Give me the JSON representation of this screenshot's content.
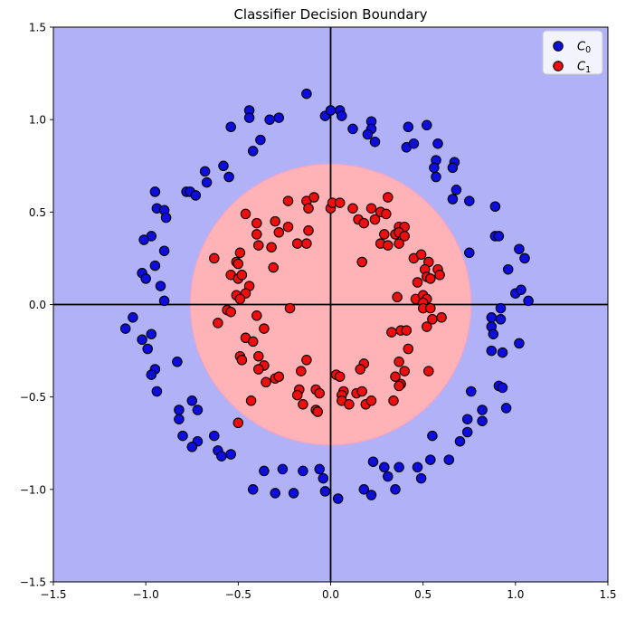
{
  "figure": {
    "title": "Classifier Decision Boundary",
    "background_color": "#ffffff"
  },
  "chart_data": {
    "type": "scatter",
    "title": "Classifier Decision Boundary",
    "xlabel": "",
    "ylabel": "",
    "xlim": [
      -1.5,
      1.5
    ],
    "ylim": [
      -1.5,
      1.5
    ],
    "grid": false,
    "xticks": {
      "values": [
        -1.5,
        -1.0,
        -0.5,
        0.0,
        0.5,
        1.0,
        1.5
      ],
      "labels": [
        "−1.5",
        "−1.0",
        "−0.5",
        "0.0",
        "0.5",
        "1.0",
        "1.5"
      ]
    },
    "yticks": {
      "values": [
        -1.5,
        -1.0,
        -0.5,
        0.0,
        0.5,
        1.0,
        1.5
      ],
      "labels": [
        "−1.5",
        "−1.0",
        "−0.5",
        "0.0",
        "0.5",
        "1.0",
        "1.5"
      ]
    },
    "axis_lines": {
      "x": 0,
      "y": 0,
      "color": "#000000",
      "width": 1.8
    },
    "decision_regions": {
      "outer_class": "C0",
      "outer_color": "#b1b1f8",
      "inner_class": "C1",
      "inner_color": "#ffb3b6",
      "boundary_shape": "circle",
      "boundary_center": [
        0,
        0
      ],
      "boundary_radius": 0.76,
      "boundary_edge_color": "#f0a4c8"
    },
    "legend": {
      "position": "upper right",
      "entries": [
        {
          "label_base": "C",
          "label_sub": "0",
          "marker_color": "#0d0ddd"
        },
        {
          "label_base": "C",
          "label_sub": "1",
          "marker_color": "#ee0e0e"
        }
      ]
    },
    "series": [
      {
        "name": "C0",
        "marker": "circle",
        "marker_color": "#0d0ddd",
        "edge_color": "#000000",
        "points": [
          [
            -0.13,
            1.14
          ],
          [
            -0.44,
            1.05
          ],
          [
            -0.44,
            1.01
          ],
          [
            -0.33,
            1.0
          ],
          [
            -0.28,
            1.01
          ],
          [
            -0.54,
            0.96
          ],
          [
            -0.03,
            1.02
          ],
          [
            0.0,
            1.05
          ],
          [
            0.05,
            1.05
          ],
          [
            0.06,
            1.02
          ],
          [
            -0.38,
            0.89
          ],
          [
            -0.42,
            0.83
          ],
          [
            -0.58,
            0.75
          ],
          [
            -0.68,
            0.72
          ],
          [
            -0.55,
            0.69
          ],
          [
            -0.67,
            0.66
          ],
          [
            -0.95,
            0.61
          ],
          [
            -0.78,
            0.61
          ],
          [
            -0.76,
            0.61
          ],
          [
            -0.73,
            0.59
          ],
          [
            -0.94,
            0.52
          ],
          [
            -0.9,
            0.51
          ],
          [
            -0.89,
            0.47
          ],
          [
            -0.97,
            0.37
          ],
          [
            -1.01,
            0.35
          ],
          [
            -0.9,
            0.29
          ],
          [
            -0.95,
            0.21
          ],
          [
            -1.02,
            0.17
          ],
          [
            -1.0,
            0.14
          ],
          [
            -0.92,
            0.1
          ],
          [
            -0.9,
            0.02
          ],
          [
            0.12,
            0.95
          ],
          [
            0.22,
            0.99
          ],
          [
            0.22,
            0.95
          ],
          [
            0.2,
            0.92
          ],
          [
            0.24,
            0.88
          ],
          [
            0.42,
            0.96
          ],
          [
            0.52,
            0.97
          ],
          [
            0.41,
            0.85
          ],
          [
            0.45,
            0.87
          ],
          [
            0.58,
            0.87
          ],
          [
            0.57,
            0.78
          ],
          [
            0.56,
            0.74
          ],
          [
            0.67,
            0.77
          ],
          [
            0.66,
            0.74
          ],
          [
            0.57,
            0.69
          ],
          [
            0.68,
            0.62
          ],
          [
            0.66,
            0.57
          ],
          [
            0.75,
            0.56
          ],
          [
            0.89,
            0.53
          ],
          [
            0.89,
            0.37
          ],
          [
            0.91,
            0.37
          ],
          [
            1.02,
            0.3
          ],
          [
            1.05,
            0.25
          ],
          [
            0.75,
            0.28
          ],
          [
            0.96,
            0.19
          ],
          [
            1.0,
            0.06
          ],
          [
            1.03,
            0.08
          ],
          [
            1.07,
            0.02
          ],
          [
            -1.07,
            -0.07
          ],
          [
            -1.11,
            -0.13
          ],
          [
            -1.02,
            -0.19
          ],
          [
            -0.97,
            -0.16
          ],
          [
            -0.99,
            -0.24
          ],
          [
            -0.83,
            -0.31
          ],
          [
            -0.95,
            -0.35
          ],
          [
            -0.97,
            -0.38
          ],
          [
            -0.94,
            -0.47
          ],
          [
            -0.75,
            -0.52
          ],
          [
            -0.72,
            -0.57
          ],
          [
            -0.82,
            -0.57
          ],
          [
            -0.82,
            -0.62
          ],
          [
            -0.8,
            -0.71
          ],
          [
            -0.72,
            -0.74
          ],
          [
            -0.75,
            -0.77
          ],
          [
            -0.63,
            -0.71
          ],
          [
            -0.61,
            -0.79
          ],
          [
            -0.59,
            -0.82
          ],
          [
            -0.54,
            -0.81
          ],
          [
            -0.36,
            -0.9
          ],
          [
            -0.26,
            -0.89
          ],
          [
            -0.15,
            -0.9
          ],
          [
            -0.06,
            -0.89
          ],
          [
            -0.42,
            -1.0
          ],
          [
            -0.3,
            -1.02
          ],
          [
            -0.2,
            -1.02
          ],
          [
            -0.04,
            -0.94
          ],
          [
            -0.03,
            -1.01
          ],
          [
            0.92,
            -0.02
          ],
          [
            0.87,
            -0.07
          ],
          [
            0.92,
            -0.08
          ],
          [
            0.87,
            -0.12
          ],
          [
            0.88,
            -0.16
          ],
          [
            1.02,
            -0.21
          ],
          [
            0.87,
            -0.25
          ],
          [
            0.93,
            -0.26
          ],
          [
            0.76,
            -0.47
          ],
          [
            0.91,
            -0.44
          ],
          [
            0.93,
            -0.45
          ],
          [
            0.82,
            -0.57
          ],
          [
            0.95,
            -0.56
          ],
          [
            0.74,
            -0.62
          ],
          [
            0.82,
            -0.63
          ],
          [
            0.74,
            -0.69
          ],
          [
            0.7,
            -0.74
          ],
          [
            0.55,
            -0.71
          ],
          [
            0.54,
            -0.84
          ],
          [
            0.64,
            -0.84
          ],
          [
            0.23,
            -0.85
          ],
          [
            0.29,
            -0.88
          ],
          [
            0.37,
            -0.88
          ],
          [
            0.47,
            -0.88
          ],
          [
            0.49,
            -0.94
          ],
          [
            0.31,
            -0.93
          ],
          [
            0.18,
            -1.0
          ],
          [
            0.22,
            -1.03
          ],
          [
            0.35,
            -1.0
          ],
          [
            0.04,
            -1.05
          ]
        ]
      },
      {
        "name": "C1",
        "marker": "circle",
        "marker_color": "#ee0e0e",
        "edge_color": "#000000",
        "points": [
          [
            -0.23,
            0.56
          ],
          [
            -0.13,
            0.56
          ],
          [
            -0.09,
            0.58
          ],
          [
            -0.12,
            0.52
          ],
          [
            0.0,
            0.52
          ],
          [
            0.01,
            0.55
          ],
          [
            0.05,
            0.55
          ],
          [
            -0.46,
            0.49
          ],
          [
            -0.4,
            0.44
          ],
          [
            -0.3,
            0.45
          ],
          [
            -0.23,
            0.42
          ],
          [
            -0.28,
            0.39
          ],
          [
            -0.4,
            0.38
          ],
          [
            -0.12,
            0.4
          ],
          [
            -0.39,
            0.32
          ],
          [
            -0.32,
            0.31
          ],
          [
            -0.18,
            0.33
          ],
          [
            -0.13,
            0.33
          ],
          [
            -0.63,
            0.25
          ],
          [
            -0.49,
            0.28
          ],
          [
            -0.51,
            0.23
          ],
          [
            -0.5,
            0.22
          ],
          [
            -0.31,
            0.2
          ],
          [
            -0.54,
            0.16
          ],
          [
            -0.5,
            0.14
          ],
          [
            -0.48,
            0.16
          ],
          [
            -0.44,
            0.1
          ],
          [
            -0.51,
            0.05
          ],
          [
            -0.46,
            0.06
          ],
          [
            -0.49,
            0.03
          ],
          [
            -0.22,
            -0.02
          ],
          [
            0.12,
            0.52
          ],
          [
            0.22,
            0.52
          ],
          [
            0.31,
            0.58
          ],
          [
            0.27,
            0.5
          ],
          [
            0.3,
            0.49
          ],
          [
            0.15,
            0.46
          ],
          [
            0.18,
            0.44
          ],
          [
            0.24,
            0.46
          ],
          [
            0.37,
            0.42
          ],
          [
            0.4,
            0.42
          ],
          [
            0.35,
            0.38
          ],
          [
            0.37,
            0.39
          ],
          [
            0.29,
            0.38
          ],
          [
            0.4,
            0.37
          ],
          [
            0.27,
            0.33
          ],
          [
            0.31,
            0.32
          ],
          [
            0.37,
            0.33
          ],
          [
            0.17,
            0.23
          ],
          [
            0.45,
            0.25
          ],
          [
            0.49,
            0.27
          ],
          [
            0.53,
            0.23
          ],
          [
            0.51,
            0.19
          ],
          [
            0.58,
            0.19
          ],
          [
            0.59,
            0.16
          ],
          [
            0.47,
            0.12
          ],
          [
            0.52,
            0.15
          ],
          [
            0.54,
            0.14
          ],
          [
            0.36,
            0.04
          ],
          [
            0.46,
            0.03
          ],
          [
            0.5,
            0.05
          ],
          [
            0.52,
            0.03
          ],
          [
            0.5,
            0.01
          ],
          [
            -0.56,
            -0.03
          ],
          [
            -0.54,
            -0.04
          ],
          [
            -0.61,
            -0.1
          ],
          [
            -0.4,
            -0.06
          ],
          [
            -0.36,
            -0.13
          ],
          [
            -0.46,
            -0.18
          ],
          [
            -0.42,
            -0.2
          ],
          [
            -0.49,
            -0.28
          ],
          [
            -0.48,
            -0.3
          ],
          [
            -0.39,
            -0.28
          ],
          [
            -0.36,
            -0.33
          ],
          [
            -0.39,
            -0.35
          ],
          [
            -0.35,
            -0.42
          ],
          [
            -0.3,
            -0.4
          ],
          [
            -0.28,
            -0.39
          ],
          [
            -0.13,
            -0.3
          ],
          [
            -0.16,
            -0.36
          ],
          [
            -0.17,
            -0.46
          ],
          [
            -0.18,
            -0.49
          ],
          [
            -0.15,
            -0.54
          ],
          [
            -0.08,
            -0.46
          ],
          [
            -0.06,
            -0.48
          ],
          [
            -0.08,
            -0.57
          ],
          [
            -0.07,
            -0.58
          ],
          [
            -0.43,
            -0.52
          ],
          [
            -0.5,
            -0.64
          ],
          [
            0.5,
            -0.02
          ],
          [
            0.54,
            -0.02
          ],
          [
            0.55,
            -0.08
          ],
          [
            0.6,
            -0.07
          ],
          [
            0.52,
            -0.12
          ],
          [
            0.33,
            -0.15
          ],
          [
            0.38,
            -0.14
          ],
          [
            0.41,
            -0.14
          ],
          [
            0.42,
            -0.24
          ],
          [
            0.18,
            -0.32
          ],
          [
            0.16,
            -0.35
          ],
          [
            0.37,
            -0.31
          ],
          [
            0.35,
            -0.39
          ],
          [
            0.4,
            -0.36
          ],
          [
            0.53,
            -0.36
          ],
          [
            0.38,
            -0.43
          ],
          [
            0.37,
            -0.44
          ],
          [
            0.03,
            -0.38
          ],
          [
            0.05,
            -0.39
          ],
          [
            0.07,
            -0.47
          ],
          [
            0.06,
            -0.49
          ],
          [
            0.14,
            -0.48
          ],
          [
            0.17,
            -0.47
          ],
          [
            0.06,
            -0.52
          ],
          [
            0.1,
            -0.54
          ],
          [
            0.19,
            -0.54
          ],
          [
            0.22,
            -0.52
          ],
          [
            0.34,
            -0.52
          ]
        ]
      }
    ]
  }
}
